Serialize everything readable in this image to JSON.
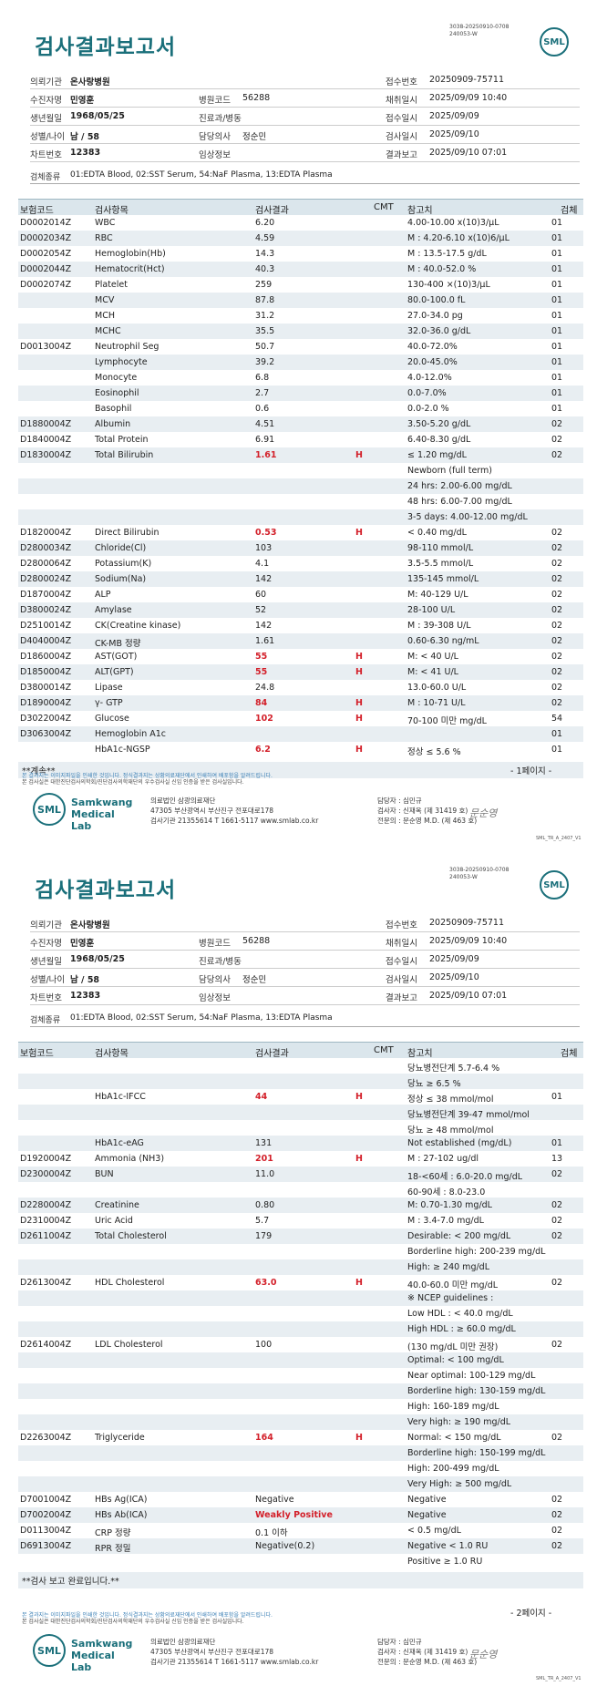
{
  "report": {
    "doc_number_line1": "3038-20250910-0708",
    "doc_number_line2": "240053-W",
    "title": "검사결과보고서",
    "logo_text": "SML"
  },
  "patient": {
    "institution_label": "의뢰기관",
    "institution": "온사랑병원",
    "receipt_no_label": "접수번호",
    "receipt_no": "20250909-75711",
    "name_label": "수진자명",
    "name": "민영훈",
    "hospital_code_label": "병원코드",
    "hospital_code": "56288",
    "collected_label": "채취일시",
    "collected": "2025/09/09 10:40",
    "dob_label": "생년월일",
    "dob": "1968/05/25",
    "dept_label": "진료과/병동",
    "received_label": "접수일시",
    "received": "2025/09/09",
    "sex_age_label": "성별/나이",
    "sex_age": "남 / 58",
    "doctor_label": "담당의사",
    "doctor": "정순민",
    "tested_label": "검사일시",
    "tested": "2025/09/10",
    "chart_label": "차트번호",
    "chart_no": "12383",
    "clinical_label": "임상정보",
    "reported_label": "결과보고",
    "reported": "2025/09/10 07:01",
    "specimen_label": "검체종류",
    "specimen": "01:EDTA Blood, 02:SST Serum, 54:NaF Plasma, 13:EDTA Plasma"
  },
  "table_headers": {
    "code": "보험코드",
    "item": "검사항목",
    "result": "검사결과",
    "cmt": "CMT",
    "ref": "참고치",
    "spec": "검체"
  },
  "page1_rows": [
    {
      "code": "D0002014Z",
      "item": "WBC",
      "result": "6.20",
      "flag": "",
      "ref": "4.00-10.00 x(10)3/µL",
      "spec": "01"
    },
    {
      "code": "D0002034Z",
      "item": "RBC",
      "result": "4.59",
      "flag": "",
      "ref": "M : 4.20-6.10 x(10)6/µL",
      "spec": "01"
    },
    {
      "code": "D0002054Z",
      "item": "Hemoglobin(Hb)",
      "result": "14.3",
      "flag": "",
      "ref": "M : 13.5-17.5 g/dL",
      "spec": "01"
    },
    {
      "code": "D0002044Z",
      "item": "Hematocrit(Hct)",
      "result": "40.3",
      "flag": "",
      "ref": "M : 40.0-52.0 %",
      "spec": "01"
    },
    {
      "code": "D0002074Z",
      "item": "Platelet",
      "result": "259",
      "flag": "",
      "ref": "130-400 ×(10)3/µL",
      "spec": "01"
    },
    {
      "code": "",
      "item": "MCV",
      "result": "87.8",
      "flag": "",
      "ref": "80.0-100.0 fL",
      "spec": "01"
    },
    {
      "code": "",
      "item": "MCH",
      "result": "31.2",
      "flag": "",
      "ref": "27.0-34.0 pg",
      "spec": "01"
    },
    {
      "code": "",
      "item": "MCHC",
      "result": "35.5",
      "flag": "",
      "ref": "32.0-36.0 g/dL",
      "spec": "01"
    },
    {
      "code": "D0013004Z",
      "item": "Neutrophil Seg",
      "result": "50.7",
      "flag": "",
      "ref": "40.0-72.0%",
      "spec": "01"
    },
    {
      "code": "",
      "item": "Lymphocyte",
      "result": "39.2",
      "flag": "",
      "ref": "20.0-45.0%",
      "spec": "01"
    },
    {
      "code": "",
      "item": "Monocyte",
      "result": "6.8",
      "flag": "",
      "ref": "4.0-12.0%",
      "spec": "01"
    },
    {
      "code": "",
      "item": "Eosinophil",
      "result": "2.7",
      "flag": "",
      "ref": "0.0-7.0%",
      "spec": "01"
    },
    {
      "code": "",
      "item": "Basophil",
      "result": "0.6",
      "flag": "",
      "ref": "0.0-2.0 %",
      "spec": "01"
    },
    {
      "code": "D1880004Z",
      "item": "Albumin",
      "result": "4.51",
      "flag": "",
      "ref": "3.50-5.20 g/dL",
      "spec": "02"
    },
    {
      "code": "D1840004Z",
      "item": "Total Protein",
      "result": "6.91",
      "flag": "",
      "ref": "6.40-8.30 g/dL",
      "spec": "02"
    },
    {
      "code": "D1830004Z",
      "item": "Total Bilirubin",
      "result": "1.61",
      "flag": "H",
      "ref": "≤ 1.20 mg/dL",
      "spec": "02"
    },
    {
      "code": "",
      "item": "",
      "result": "",
      "flag": "",
      "ref": "Newborn (full term)",
      "spec": ""
    },
    {
      "code": "",
      "item": "",
      "result": "",
      "flag": "",
      "ref": "24 hrs: 2.00-6.00 mg/dL",
      "spec": ""
    },
    {
      "code": "",
      "item": "",
      "result": "",
      "flag": "",
      "ref": "48 hrs: 6.00-7.00 mg/dL",
      "spec": ""
    },
    {
      "code": "",
      "item": "",
      "result": "",
      "flag": "",
      "ref": "3-5 days: 4.00-12.00 mg/dL",
      "spec": ""
    },
    {
      "code": "D1820004Z",
      "item": "Direct Bilirubin",
      "result": "0.53",
      "flag": "H",
      "ref": "< 0.40 mg/dL",
      "spec": "02"
    },
    {
      "code": "D2800034Z",
      "item": "Chloride(Cl)",
      "result": "103",
      "flag": "",
      "ref": "98-110 mmol/L",
      "spec": "02"
    },
    {
      "code": "D2800064Z",
      "item": "Potassium(K)",
      "result": "4.1",
      "flag": "",
      "ref": "3.5-5.5 mmol/L",
      "spec": "02"
    },
    {
      "code": "D2800024Z",
      "item": "Sodium(Na)",
      "result": "142",
      "flag": "",
      "ref": "135-145 mmol/L",
      "spec": "02"
    },
    {
      "code": "D1870004Z",
      "item": "ALP",
      "result": "60",
      "flag": "",
      "ref": "M: 40-129 U/L",
      "spec": "02"
    },
    {
      "code": "D3800024Z",
      "item": "Amylase",
      "result": "52",
      "flag": "",
      "ref": "28-100 U/L",
      "spec": "02"
    },
    {
      "code": "D2510014Z",
      "item": "CK(Creatine kinase)",
      "result": "142",
      "flag": "",
      "ref": "M : 39-308 U/L",
      "spec": "02"
    },
    {
      "code": "D4040004Z",
      "item": "CK-MB 정량",
      "result": "1.61",
      "flag": "",
      "ref": "0.60-6.30 ng/mL",
      "spec": "02"
    },
    {
      "code": "D1860004Z",
      "item": "AST(GOT)",
      "result": "55",
      "flag": "H",
      "ref": "M: < 40 U/L",
      "spec": "02"
    },
    {
      "code": "D1850004Z",
      "item": "ALT(GPT)",
      "result": "55",
      "flag": "H",
      "ref": "M: < 41 U/L",
      "spec": "02"
    },
    {
      "code": "D3800014Z",
      "item": "Lipase",
      "result": "24.8",
      "flag": "",
      "ref": "13.0-60.0 U/L",
      "spec": "02"
    },
    {
      "code": "D1890004Z",
      "item": "γ- GTP",
      "result": "84",
      "flag": "H",
      "ref": "M : 10-71 U/L",
      "spec": "02"
    },
    {
      "code": "D3022004Z",
      "item": "Glucose",
      "result": "102",
      "flag": "H",
      "ref": "70-100 미만 mg/dL",
      "spec": "54"
    },
    {
      "code": "D3063004Z",
      "item": "Hemoglobin A1c",
      "result": "",
      "flag": "",
      "ref": "",
      "spec": "01"
    },
    {
      "code": "",
      "item": "HbA1c-NGSP",
      "result": "6.2",
      "flag": "H",
      "ref": "정상 ≤ 5.6 %",
      "spec": "01"
    }
  ],
  "page2_rows": [
    {
      "code": "",
      "item": "",
      "result": "",
      "flag": "",
      "ref": "당뇨병전단계 5.7-6.4 %",
      "spec": ""
    },
    {
      "code": "",
      "item": "",
      "result": "",
      "flag": "",
      "ref": "당뇨 ≥ 6.5 %",
      "spec": ""
    },
    {
      "code": "",
      "item": "HbA1c-IFCC",
      "result": "44",
      "flag": "H",
      "ref": "정상 ≤ 38 mmol/mol",
      "spec": "01"
    },
    {
      "code": "",
      "item": "",
      "result": "",
      "flag": "",
      "ref": "당뇨병전단계 39-47 mmol/mol",
      "spec": ""
    },
    {
      "code": "",
      "item": "",
      "result": "",
      "flag": "",
      "ref": "당뇨 ≥ 48 mmol/mol",
      "spec": ""
    },
    {
      "code": "",
      "item": "HbA1c-eAG",
      "result": "131",
      "flag": "",
      "ref": "Not established (mg/dL)",
      "spec": "01"
    },
    {
      "code": "D1920004Z",
      "item": "Ammonia (NH3)",
      "result": "201",
      "flag": "H",
      "ref": "M : 27-102 ug/dl",
      "spec": "13"
    },
    {
      "code": "D2300004Z",
      "item": "BUN",
      "result": "11.0",
      "flag": "",
      "ref": "18-<60세 : 6.0-20.0 mg/dL",
      "spec": "02"
    },
    {
      "code": "",
      "item": "",
      "result": "",
      "flag": "",
      "ref": "60-90세 : 8.0-23.0",
      "spec": ""
    },
    {
      "code": "D2280004Z",
      "item": "Creatinine",
      "result": "0.80",
      "flag": "",
      "ref": "M: 0.70-1.30 mg/dL",
      "spec": "02"
    },
    {
      "code": "D2310004Z",
      "item": "Uric Acid",
      "result": "5.7",
      "flag": "",
      "ref": "M : 3.4-7.0 mg/dL",
      "spec": "02"
    },
    {
      "code": "D2611004Z",
      "item": "Total Cholesterol",
      "result": "179",
      "flag": "",
      "ref": "Desirable: < 200 mg/dL",
      "spec": "02"
    },
    {
      "code": "",
      "item": "",
      "result": "",
      "flag": "",
      "ref": "Borderline high: 200-239 mg/dL",
      "spec": ""
    },
    {
      "code": "",
      "item": "",
      "result": "",
      "flag": "",
      "ref": "High: ≥ 240 mg/dL",
      "spec": ""
    },
    {
      "code": "D2613004Z",
      "item": "HDL Cholesterol",
      "result": "63.0",
      "flag": "H",
      "ref": "40.0-60.0 미만 mg/dL",
      "spec": "02"
    },
    {
      "code": "",
      "item": "",
      "result": "",
      "flag": "",
      "ref": "※ NCEP guidelines :",
      "spec": ""
    },
    {
      "code": "",
      "item": "",
      "result": "",
      "flag": "",
      "ref": "Low HDL : < 40.0 mg/dL",
      "spec": ""
    },
    {
      "code": "",
      "item": "",
      "result": "",
      "flag": "",
      "ref": "High HDL : ≥ 60.0 mg/dL",
      "spec": ""
    },
    {
      "code": "D2614004Z",
      "item": "LDL Cholesterol",
      "result": "100",
      "flag": "",
      "ref": "(130 mg/dL 미만 권장)",
      "spec": "02"
    },
    {
      "code": "",
      "item": "",
      "result": "",
      "flag": "",
      "ref": "Optimal: < 100 mg/dL",
      "spec": ""
    },
    {
      "code": "",
      "item": "",
      "result": "",
      "flag": "",
      "ref": "Near optimal: 100-129 mg/dL",
      "spec": ""
    },
    {
      "code": "",
      "item": "",
      "result": "",
      "flag": "",
      "ref": "Borderline high: 130-159 mg/dL",
      "spec": ""
    },
    {
      "code": "",
      "item": "",
      "result": "",
      "flag": "",
      "ref": "High: 160-189 mg/dL",
      "spec": ""
    },
    {
      "code": "",
      "item": "",
      "result": "",
      "flag": "",
      "ref": "Very high: ≥ 190 mg/dL",
      "spec": ""
    },
    {
      "code": "D2263004Z",
      "item": "Triglyceride",
      "result": "164",
      "flag": "H",
      "ref": "Normal: < 150 mg/dL",
      "spec": "02"
    },
    {
      "code": "",
      "item": "",
      "result": "",
      "flag": "",
      "ref": "Borderline high: 150-199 mg/dL",
      "spec": ""
    },
    {
      "code": "",
      "item": "",
      "result": "",
      "flag": "",
      "ref": "High: 200-499 mg/dL",
      "spec": ""
    },
    {
      "code": "",
      "item": "",
      "result": "",
      "flag": "",
      "ref": "Very High: ≥ 500 mg/dL",
      "spec": ""
    },
    {
      "code": "D7001004Z",
      "item": "HBs Ag(ICA)",
      "result": "Negative",
      "flag": "",
      "ref": "Negative",
      "spec": "02"
    },
    {
      "code": "D7002004Z",
      "item": "HBs Ab(ICA)",
      "result": "Weakly Positive",
      "flag": "",
      "ref": "Negative",
      "spec": "02",
      "weak": true
    },
    {
      "code": "D0113004Z",
      "item": "CRP 정량",
      "result": "0.1 이하",
      "flag": "",
      "ref": "< 0.5 mg/dL",
      "spec": "02"
    },
    {
      "code": "D6913004Z",
      "item": "RPR 정밀",
      "result": "Negative(0.2)",
      "flag": "",
      "ref": "Negative < 1.0 RU",
      "spec": "02"
    },
    {
      "code": "",
      "item": "",
      "result": "",
      "flag": "",
      "ref": "Positive ≥ 1.0 RU",
      "spec": ""
    }
  ],
  "page1_footer": {
    "continued": "**계속**",
    "page_no": "- 1페이지 -"
  },
  "page2_footer": {
    "complete": "**검사 보고 완료입니다.**",
    "page_no": "- 2페이지 -"
  },
  "footer": {
    "disclaimer1": "본 결과지는 이미지파일을 인쇄한 것입니다. 정식결과지는 상황의료재단에서 인쇄하여 배포함을 알려드립니다.",
    "disclaimer2": "본 검사실은 대한진단검사의학회/진단검사의학재단의 우수검사실 신임 인증을 받은 검사실입니다.",
    "logo_line1": "Samkwang",
    "logo_line2": "Medical Lab",
    "foundation": "의료법인 삼광의료재단",
    "address": "47305 부산광역시 부산진구 전포대로178",
    "contact": "검사기관 21355614 T 1661-5117 www.smlab.co.kr",
    "person_in_charge": "담당자 : 심민규",
    "examiner": "검사자 : 신재옥 (제 31419 호)",
    "specialist": "전문의 : 문순영 M.D. (제 463 호)",
    "signature": "문순영",
    "version": "SML_TR_A_2407_V1"
  }
}
